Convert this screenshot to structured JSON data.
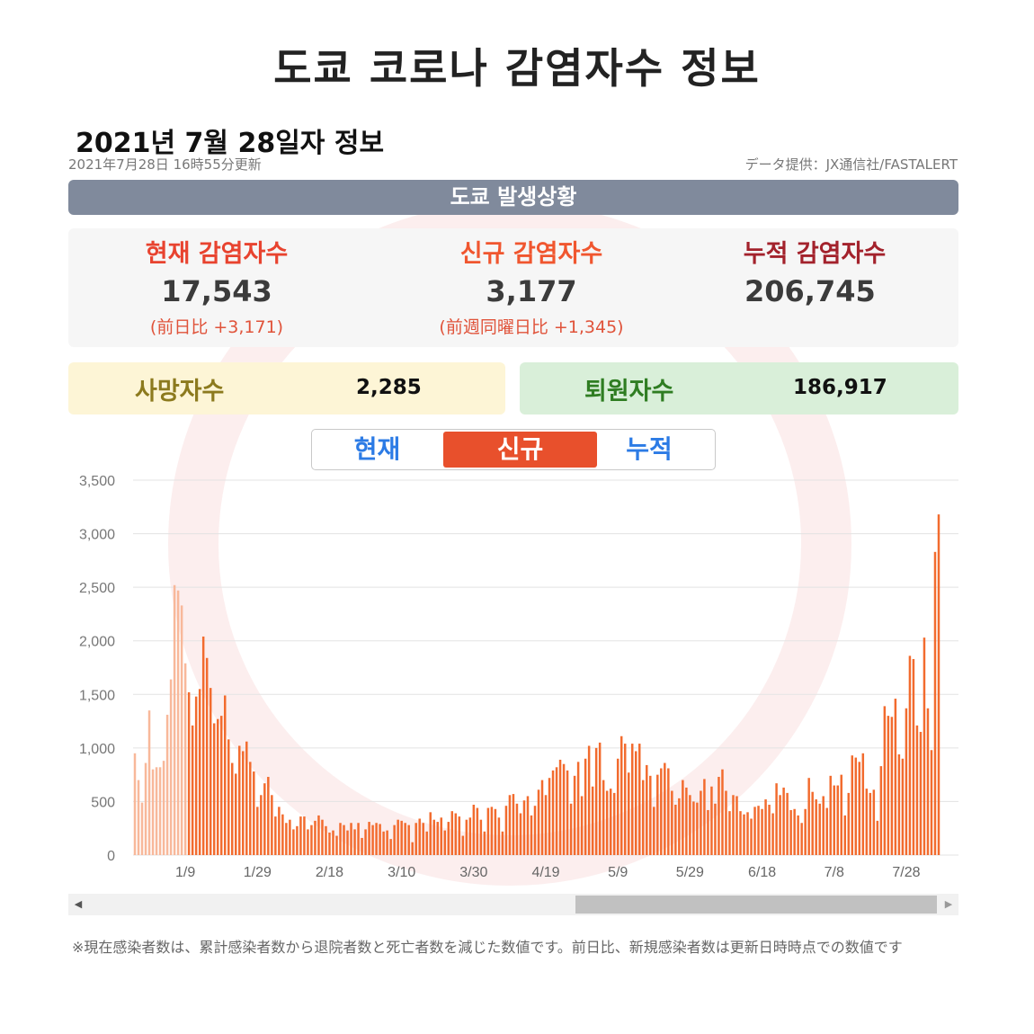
{
  "title": "도쿄 코로나 감염자수 정보",
  "subtitle": "2021년 7월 28일자 정보",
  "updated": "2021年7月28日 16時55分更新",
  "source": "データ提供：JX通信社/FASTALERT",
  "banner": "도쿄 발생상황",
  "stats": {
    "current": {
      "label": "현재 감염자수",
      "value": "17,543",
      "diff": "(前日比 +3,171)"
    },
    "new": {
      "label": "신규 감염자수",
      "value": "3,177",
      "diff": "(前週同曜日比 +1,345)"
    },
    "total": {
      "label": "누적 감염자수",
      "value": "206,745"
    }
  },
  "deaths": {
    "label": "사망자수",
    "value": "2,285"
  },
  "recovered": {
    "label": "퇴원자수",
    "value": "186,917"
  },
  "tabs": [
    {
      "label": "현재",
      "active": false
    },
    {
      "label": "신규",
      "active": true
    },
    {
      "label": "누적",
      "active": false
    }
  ],
  "colors": {
    "current_label": "#e8432f",
    "new_label": "#f0562f",
    "total_label": "#a3222c",
    "deaths_bg": "#fdf5d6",
    "deaths_label": "#8c7a1e",
    "recovered_bg": "#d9efd9",
    "recovered_label": "#2f7d22",
    "tab_inactive": "#2c7be5",
    "bar": "#f26b2e",
    "bar_faded": "#f8b89a"
  },
  "note": "※現在感染者数は、累計感染者数から退院者数と死亡者数を減じた数値です。前日比、新規感染者数は更新日時時点での数値です",
  "chart_data": {
    "type": "bar",
    "title": "",
    "xlabel": "",
    "ylabel": "",
    "ylim": [
      0,
      3500
    ],
    "yticks": [
      "0",
      "500",
      "1,000",
      "1,500",
      "2,000",
      "2,500",
      "3,000",
      "3,500"
    ],
    "ytick_values": [
      0,
      500,
      1000,
      1500,
      2000,
      2500,
      3000,
      3500
    ],
    "xticks": [
      "1/9",
      "1/29",
      "2/18",
      "3/10",
      "3/30",
      "4/19",
      "5/9",
      "5/29",
      "6/18",
      "7/8",
      "7/28"
    ],
    "xtick_days": [
      14,
      34,
      54,
      74,
      94,
      114,
      134,
      154,
      174,
      194,
      214
    ],
    "first_day": "12/27",
    "faded_days": 15,
    "values": [
      950,
      700,
      490,
      860,
      1350,
      800,
      820,
      820,
      880,
      1310,
      1640,
      2520,
      2470,
      2330,
      1790,
      1520,
      1210,
      1480,
      1550,
      2040,
      1840,
      1560,
      1230,
      1270,
      1300,
      1490,
      1080,
      860,
      760,
      1020,
      970,
      1060,
      870,
      780,
      450,
      560,
      670,
      730,
      560,
      360,
      450,
      380,
      300,
      330,
      240,
      270,
      360,
      360,
      240,
      280,
      320,
      370,
      330,
      270,
      210,
      230,
      180,
      300,
      280,
      230,
      300,
      240,
      300,
      160,
      240,
      310,
      280,
      300,
      290,
      220,
      230,
      150,
      280,
      330,
      320,
      300,
      280,
      120,
      300,
      340,
      300,
      220,
      400,
      330,
      310,
      350,
      230,
      310,
      410,
      390,
      360,
      180,
      330,
      350,
      470,
      440,
      330,
      220,
      440,
      450,
      430,
      350,
      220,
      460,
      560,
      570,
      480,
      390,
      510,
      550,
      370,
      460,
      610,
      700,
      560,
      720,
      790,
      820,
      890,
      850,
      790,
      480,
      740,
      870,
      550,
      900,
      1020,
      640,
      1000,
      1050,
      700,
      600,
      620,
      580,
      900,
      1110,
      1040,
      770,
      1040,
      970,
      1040,
      700,
      840,
      740,
      450,
      750,
      810,
      860,
      810,
      600,
      470,
      530,
      700,
      630,
      560,
      500,
      490,
      600,
      710,
      420,
      640,
      480,
      730,
      800,
      600,
      410,
      560,
      550,
      410,
      380,
      400,
      340,
      450,
      460,
      430,
      520,
      470,
      390,
      670,
      560,
      630,
      580,
      420,
      430,
      370,
      300,
      430,
      720,
      590,
      520,
      480,
      550,
      440,
      740,
      650,
      650,
      750,
      370,
      580,
      930,
      910,
      870,
      950,
      620,
      580,
      610,
      320,
      830,
      1390,
      1300,
      1290,
      1460,
      940,
      900,
      1370,
      1860,
      1830,
      1210,
      1150,
      2030,
      1370,
      980,
      2830,
      3180
    ]
  }
}
